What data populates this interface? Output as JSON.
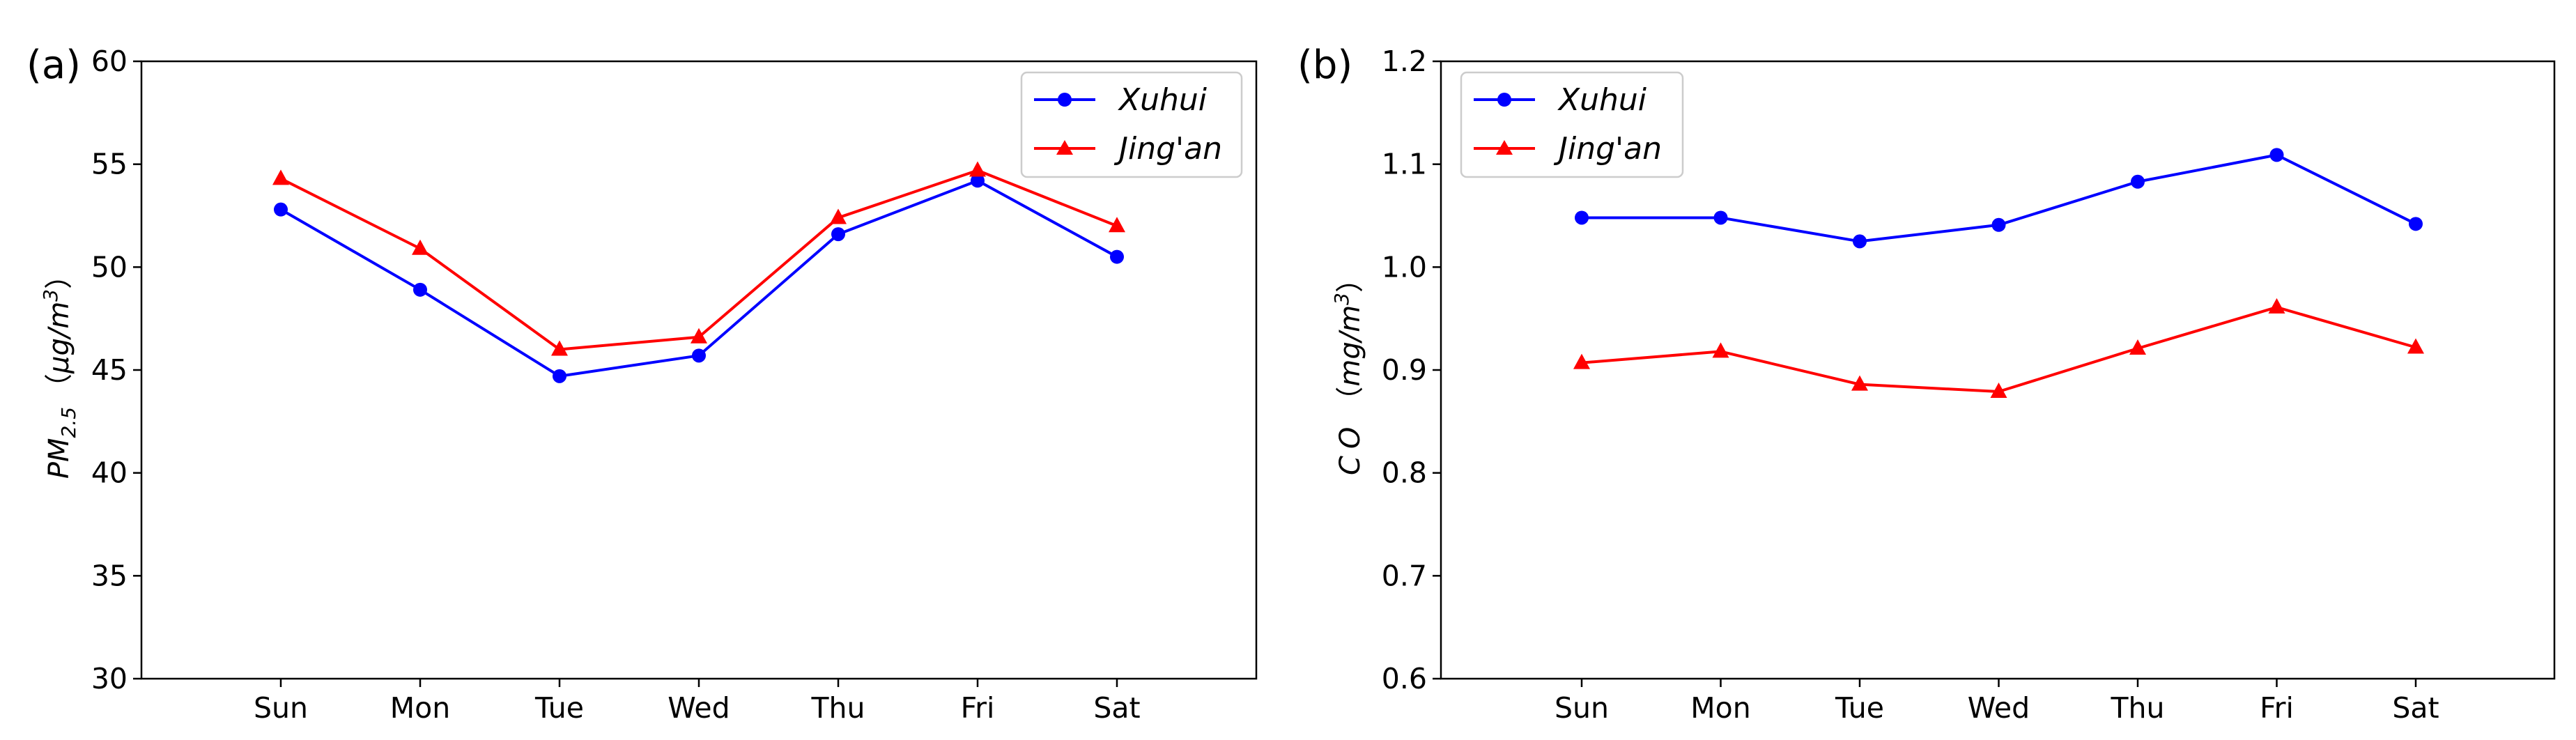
{
  "chart_data": [
    {
      "type": "line",
      "panel_label": "(a)",
      "categories": [
        "Sun",
        "Mon",
        "Tue",
        "Wed",
        "Thu",
        "Fri",
        "Sat"
      ],
      "ylim": [
        30,
        60
      ],
      "yticks": [
        30,
        35,
        40,
        45,
        50,
        55,
        60
      ],
      "ylabel": {
        "var": "PM",
        "sub": "2.5",
        "open": "（",
        "unit": "μg/m",
        "sup": "3",
        "close": "）"
      },
      "legend_position": "top-right",
      "series": [
        {
          "name": "Xuhui",
          "color": "#0000ff",
          "marker": "circle",
          "values": [
            52.8,
            48.9,
            44.7,
            45.7,
            51.6,
            54.2,
            50.5
          ]
        },
        {
          "name": "Jing'an",
          "color": "#ff0000",
          "marker": "triangle",
          "values": [
            54.3,
            50.9,
            46.0,
            46.6,
            52.4,
            54.7,
            52.0
          ]
        }
      ]
    },
    {
      "type": "line",
      "panel_label": "(b)",
      "categories": [
        "Sun",
        "Mon",
        "Tue",
        "Wed",
        "Thu",
        "Fri",
        "Sat"
      ],
      "ylim": [
        0.6,
        1.2
      ],
      "yticks": [
        "0.6",
        "0.7",
        "0.8",
        "0.9",
        "1.0",
        "1.1",
        "1.2"
      ],
      "ylabel": {
        "var": "CO",
        "open": "（",
        "unit": "mg/m",
        "sup": "3",
        "close": "）"
      },
      "legend_position": "top-left",
      "series": [
        {
          "name": "Xuhui",
          "color": "#0000ff",
          "marker": "circle",
          "values": [
            1.048,
            1.048,
            1.025,
            1.041,
            1.083,
            1.109,
            1.042
          ]
        },
        {
          "name": "Jing'an",
          "color": "#ff0000",
          "marker": "triangle",
          "values": [
            0.907,
            0.918,
            0.886,
            0.879,
            0.921,
            0.961,
            0.922
          ]
        }
      ]
    }
  ]
}
